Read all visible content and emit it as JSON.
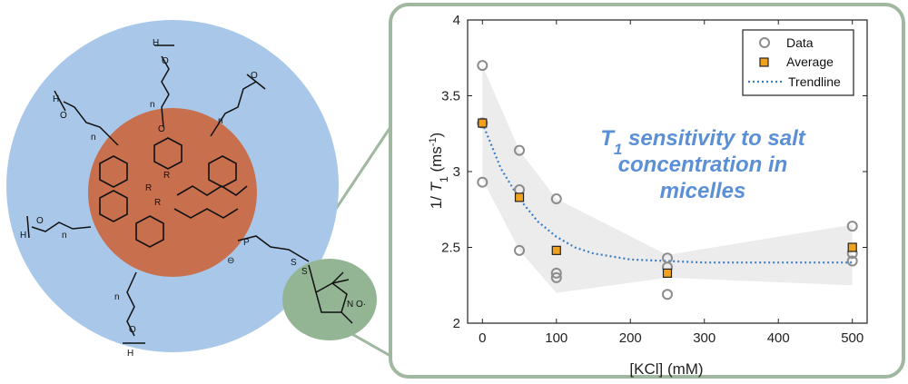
{
  "colors": {
    "micelle_outer": "#a9c8e9",
    "micelle_core": "#c8704d",
    "probe_fill": "#93b594",
    "panel_border": "#9fb89f",
    "data_marker": "#8c8c8c",
    "average_marker": "#f0a21e",
    "trendline": "#3d7fc6",
    "band_fill": "#ececec",
    "annotation": "#5b8fd6"
  },
  "molecule": {
    "labels": {
      "H": "H",
      "O": "O",
      "n": "n",
      "R": "R",
      "P": "P",
      "N": "N",
      "O_radical": "O·",
      "S": "S",
      "minus": "⊖"
    }
  },
  "annotation": {
    "line1_prefix": "T",
    "line1_sub": "1",
    "line1_rest": " sensitivity to salt",
    "line2": "concentration in",
    "line3": "micelles"
  },
  "chart_data": {
    "type": "scatter",
    "xlabel": "[KCl] (mM)",
    "ylabel": {
      "prefix": "1/ ",
      "italic": "T",
      "sub": "1",
      "unit_base": " (ms",
      "unit_sup": "-1",
      "unit_end": ")"
    },
    "xlim": [
      -20,
      520
    ],
    "ylim": [
      2,
      4
    ],
    "x_ticks": [
      0,
      100,
      200,
      300,
      400,
      500
    ],
    "y_ticks": [
      2,
      2.5,
      3,
      3.5,
      4
    ],
    "legend_position": "top-right",
    "legend": [
      "Data",
      "Average",
      "Trendline"
    ],
    "series": [
      {
        "name": "Data",
        "marker": "open-circle",
        "points": [
          [
            0,
            3.7
          ],
          [
            0,
            3.32
          ],
          [
            0,
            2.93
          ],
          [
            50,
            3.14
          ],
          [
            50,
            2.88
          ],
          [
            50,
            2.48
          ],
          [
            100,
            2.82
          ],
          [
            100,
            2.33
          ],
          [
            100,
            2.3
          ],
          [
            250,
            2.43
          ],
          [
            250,
            2.37
          ],
          [
            250,
            2.19
          ],
          [
            500,
            2.64
          ],
          [
            500,
            2.46
          ],
          [
            500,
            2.41
          ]
        ]
      },
      {
        "name": "Average",
        "marker": "filled-square",
        "points": [
          [
            0,
            3.32
          ],
          [
            50,
            2.83
          ],
          [
            100,
            2.48
          ],
          [
            250,
            2.33
          ],
          [
            500,
            2.5
          ]
        ]
      },
      {
        "name": "Trendline",
        "style": "dotted",
        "x": [
          0,
          25,
          50,
          75,
          100,
          125,
          150,
          200,
          250,
          300,
          350,
          400,
          450,
          500
        ],
        "y": [
          3.32,
          3.02,
          2.82,
          2.67,
          2.57,
          2.5,
          2.46,
          2.42,
          2.41,
          2.4,
          2.4,
          2.4,
          2.4,
          2.4
        ]
      },
      {
        "name": "Confidence band",
        "style": "shaded",
        "x": [
          0,
          50,
          100,
          250,
          500
        ],
        "upper": [
          3.7,
          3.14,
          2.82,
          2.45,
          2.65
        ],
        "lower": [
          2.95,
          2.48,
          2.2,
          2.3,
          2.25
        ]
      }
    ]
  }
}
